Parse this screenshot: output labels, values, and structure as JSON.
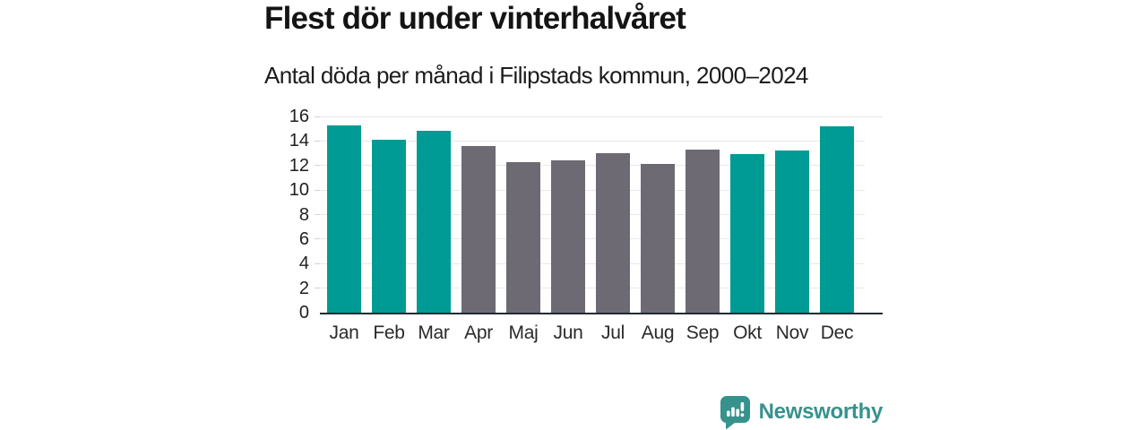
{
  "header": {
    "title": "Flest dör under vinterhalvåret",
    "subtitle": "Antal döda per månad i Filipstads kommun, 2000–2024"
  },
  "chart_data": {
    "type": "bar",
    "categories": [
      "Jan",
      "Feb",
      "Mar",
      "Apr",
      "Maj",
      "Jun",
      "Jul",
      "Aug",
      "Sep",
      "Okt",
      "Nov",
      "Dec"
    ],
    "values": [
      15.3,
      14.1,
      14.8,
      13.6,
      12.3,
      12.4,
      13.0,
      12.1,
      13.3,
      12.9,
      13.2,
      15.2
    ],
    "series_name": "Antal döda per månad",
    "bar_seasons": [
      "winter",
      "winter",
      "winter",
      "summer",
      "summer",
      "summer",
      "summer",
      "summer",
      "summer",
      "winter",
      "winter",
      "winter"
    ],
    "palette": {
      "winter": "#009B94",
      "summer": "#6D6A73"
    },
    "title": "Flest dör under vinterhalvåret",
    "xlabel": "",
    "ylabel": "",
    "ylim": [
      0,
      16
    ],
    "yticks": [
      0,
      2,
      4,
      6,
      8,
      10,
      12,
      14,
      16
    ],
    "grid": true,
    "legend": false,
    "axis_color": "#222b33",
    "gridline_color": "#e9e9ec",
    "tick_label_color": "#1f1f1f"
  },
  "footer": {
    "brand": "Newsworthy",
    "brand_color": "#37928D",
    "logo_icon": "bar-chart-speech-bubble"
  }
}
